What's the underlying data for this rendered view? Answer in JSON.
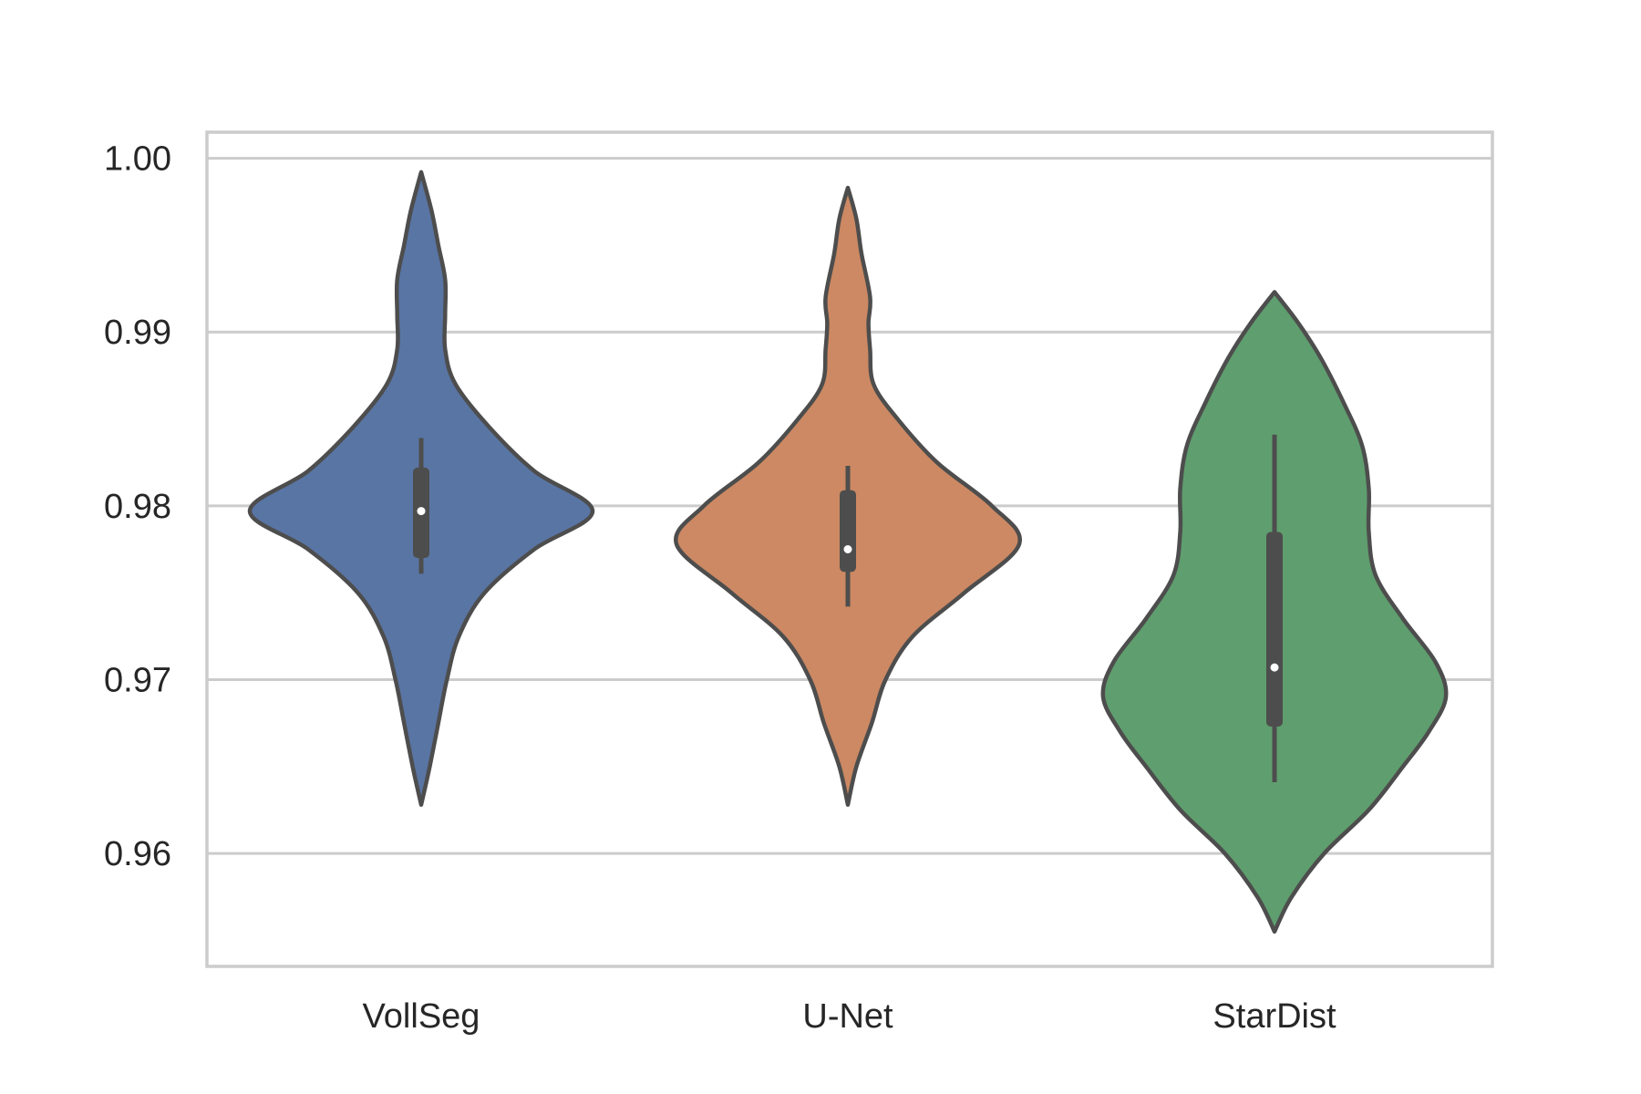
{
  "chart_data": {
    "type": "violin",
    "categories": [
      "VollSeg",
      "U-Net",
      "StarDist"
    ],
    "ylim": [
      0.9535,
      1.0015
    ],
    "yticks": [
      0.96,
      0.97,
      0.98,
      0.99,
      1.0
    ],
    "ytick_labels": [
      "0.96",
      "0.97",
      "0.98",
      "0.99",
      "1.00"
    ],
    "grid": true,
    "colors": {
      "VollSeg": "#5975a4",
      "U-Net": "#cc8963",
      "StarDist": "#5f9e6e",
      "outline": "#4d4d4d",
      "grid": "#cccccc",
      "text": "#262626"
    },
    "series": [
      {
        "category": "VollSeg",
        "min": 0.9628,
        "max": 0.9992,
        "whisker_low": 0.9761,
        "whisker_high": 0.9839,
        "q1": 0.977,
        "q3": 0.9822,
        "median": 0.9797,
        "density": [
          [
            0.9628,
            0.0
          ],
          [
            0.965,
            0.05
          ],
          [
            0.9675,
            0.1
          ],
          [
            0.97,
            0.15
          ],
          [
            0.9725,
            0.22
          ],
          [
            0.975,
            0.37
          ],
          [
            0.9775,
            0.66
          ],
          [
            0.9797,
            1.0
          ],
          [
            0.982,
            0.66
          ],
          [
            0.9845,
            0.4
          ],
          [
            0.987,
            0.2
          ],
          [
            0.989,
            0.14
          ],
          [
            0.991,
            0.14
          ],
          [
            0.993,
            0.14
          ],
          [
            0.995,
            0.1
          ],
          [
            0.997,
            0.06
          ],
          [
            0.9992,
            0.0
          ]
        ]
      },
      {
        "category": "U-Net",
        "min": 0.9628,
        "max": 0.9983,
        "whisker_low": 0.9742,
        "whisker_high": 0.9823,
        "q1": 0.9762,
        "q3": 0.9809,
        "median": 0.9775,
        "density": [
          [
            0.9628,
            0.0
          ],
          [
            0.965,
            0.05
          ],
          [
            0.9675,
            0.14
          ],
          [
            0.97,
            0.22
          ],
          [
            0.9725,
            0.38
          ],
          [
            0.975,
            0.68
          ],
          [
            0.9778,
            1.0
          ],
          [
            0.98,
            0.84
          ],
          [
            0.9825,
            0.52
          ],
          [
            0.985,
            0.29
          ],
          [
            0.987,
            0.15
          ],
          [
            0.989,
            0.13
          ],
          [
            0.9905,
            0.12
          ],
          [
            0.992,
            0.13
          ],
          [
            0.9945,
            0.08
          ],
          [
            0.9965,
            0.05
          ],
          [
            0.9983,
            0.0
          ]
        ]
      },
      {
        "category": "StarDist",
        "min": 0.9555,
        "max": 0.9923,
        "whisker_low": 0.9641,
        "whisker_high": 0.9841,
        "q1": 0.9673,
        "q3": 0.9785,
        "median": 0.9707,
        "density": [
          [
            0.9555,
            0.0
          ],
          [
            0.9575,
            0.1
          ],
          [
            0.96,
            0.29
          ],
          [
            0.9625,
            0.55
          ],
          [
            0.965,
            0.75
          ],
          [
            0.967,
            0.9
          ],
          [
            0.969,
            1.0
          ],
          [
            0.971,
            0.94
          ],
          [
            0.9735,
            0.75
          ],
          [
            0.976,
            0.59
          ],
          [
            0.9785,
            0.55
          ],
          [
            0.981,
            0.55
          ],
          [
            0.9835,
            0.51
          ],
          [
            0.986,
            0.4
          ],
          [
            0.9885,
            0.27
          ],
          [
            0.9905,
            0.14
          ],
          [
            0.9923,
            0.0
          ]
        ]
      }
    ]
  }
}
